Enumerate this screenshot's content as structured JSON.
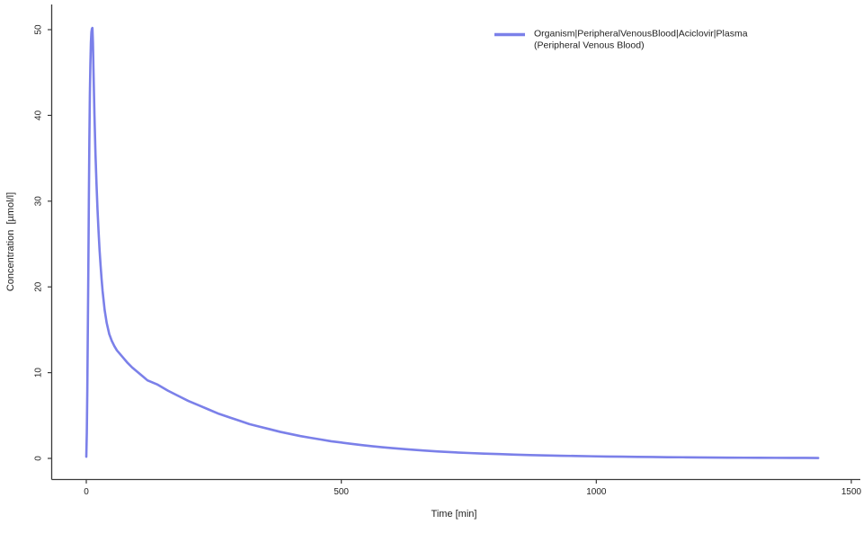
{
  "chart_data": {
    "type": "line",
    "title": "",
    "xlabel": "Time [min]",
    "ylabel": "Concentration  [µmol/l]",
    "xlim": [
      0,
      1500
    ],
    "ylim": [
      0,
      50
    ],
    "x_ticks": [
      0,
      500,
      1000,
      1500
    ],
    "y_ticks": [
      0,
      10,
      20,
      30,
      40,
      50
    ],
    "grid": false,
    "colors": {
      "line": "#7b80e9",
      "axis": "#3a3a3a",
      "text": "#1f1f1f"
    },
    "legend": {
      "position": "top-right",
      "entries": [
        {
          "label_line1": "Organism|PeripheralVenousBlood|Aciclovir|Plasma",
          "label_line2": "(Peripheral Venous Blood)",
          "color": "#7b80e9"
        }
      ]
    },
    "series": [
      {
        "name": "Organism|PeripheralVenousBlood|Aciclovir|Plasma (Peripheral Venous Blood)",
        "color": "#7b80e9",
        "x": [
          0,
          1,
          2,
          3,
          4,
          5,
          6,
          7,
          8,
          9,
          10,
          11,
          12,
          13,
          14,
          16,
          18,
          20,
          22,
          24,
          26,
          28,
          30,
          32,
          36,
          40,
          45,
          50,
          55,
          60,
          70,
          80,
          90,
          100,
          110,
          120,
          140,
          160,
          180,
          200,
          220,
          240,
          260,
          280,
          300,
          320,
          340,
          360,
          380,
          400,
          420,
          440,
          460,
          480,
          500,
          520,
          540,
          560,
          580,
          600,
          630,
          660,
          690,
          720,
          750,
          780,
          810,
          840,
          870,
          900,
          930,
          960,
          990,
          1020,
          1050,
          1080,
          1110,
          1140,
          1170,
          1200,
          1230,
          1260,
          1290,
          1320,
          1350,
          1380,
          1410,
          1435
        ],
        "y": [
          0.2,
          3,
          8,
          15,
          22,
          30,
          37,
          42.5,
          46,
          48.5,
          49.7,
          50.1,
          50.2,
          48.5,
          45.5,
          40,
          35.5,
          32,
          29,
          26.5,
          24.3,
          22.5,
          20.9,
          19.5,
          17.3,
          15.8,
          14.5,
          13.7,
          13.1,
          12.6,
          11.9,
          11.2,
          10.6,
          10.1,
          9.6,
          9.1,
          8.6,
          7.9,
          7.3,
          6.7,
          6.2,
          5.7,
          5.2,
          4.8,
          4.4,
          4.0,
          3.7,
          3.4,
          3.1,
          2.85,
          2.6,
          2.4,
          2.2,
          2.0,
          1.85,
          1.7,
          1.55,
          1.42,
          1.3,
          1.2,
          1.05,
          0.92,
          0.81,
          0.71,
          0.63,
          0.56,
          0.5,
          0.44,
          0.39,
          0.35,
          0.31,
          0.28,
          0.25,
          0.22,
          0.2,
          0.18,
          0.16,
          0.14,
          0.13,
          0.11,
          0.1,
          0.09,
          0.08,
          0.07,
          0.065,
          0.06,
          0.055,
          0.05
        ]
      }
    ]
  }
}
